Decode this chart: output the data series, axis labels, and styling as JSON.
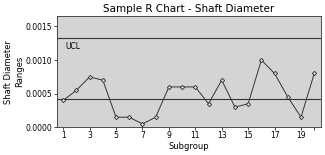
{
  "title": "Sample R Chart - Shaft Diameter",
  "xlabel": "Subgroup",
  "ylabel": "Shaft Diameter\nRanges",
  "subgroups": [
    1,
    2,
    3,
    4,
    5,
    6,
    7,
    8,
    9,
    10,
    11,
    12,
    13,
    14,
    15,
    16,
    17,
    18,
    19,
    20
  ],
  "xtick_labels": [
    "1",
    "3",
    "5",
    "7",
    "9",
    "11",
    "13",
    "15",
    "17",
    "19",
    ""
  ],
  "xtick_positions": [
    1,
    3,
    5,
    7,
    9,
    11,
    13,
    15,
    17,
    19,
    20
  ],
  "values": [
    0.0004,
    0.00055,
    0.00075,
    0.0007,
    0.00015,
    0.00015,
    5e-05,
    0.00015,
    0.0006,
    0.0006,
    0.0006,
    0.00035,
    0.0007,
    0.0003,
    0.00035,
    0.001,
    0.0008,
    0.00045,
    0.00015,
    0.0008
  ],
  "ucl": 0.00133,
  "cl": 0.00042,
  "ylim": [
    0.0,
    0.00165
  ],
  "yticks": [
    0.0,
    0.0005,
    0.001,
    0.0015
  ],
  "ucl_label": "UCL",
  "line_color": "#333333",
  "plot_bg_color": "#d4d4d4",
  "outer_bg_color": "#ffffff",
  "title_fontsize": 7.5,
  "label_fontsize": 6,
  "tick_fontsize": 5.5,
  "ucl_label_fontsize": 5.5
}
